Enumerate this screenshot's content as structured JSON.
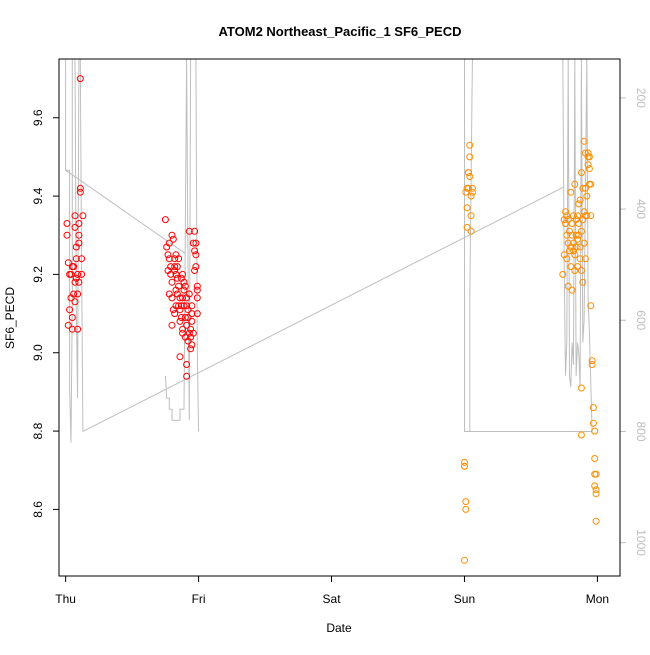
{
  "chart_data": {
    "type": "scatter",
    "title": "ATOM2 Northeast_Pacific_1 SF6_PECD",
    "xlabel": "Date",
    "ylabel": "SF6_PECD",
    "x_axis": {
      "unit": "day",
      "range": [
        -0.05,
        4.17
      ],
      "ticks": [
        {
          "v": 0,
          "label": "Thu"
        },
        {
          "v": 1,
          "label": "Fri"
        },
        {
          "v": 2,
          "label": "Sat"
        },
        {
          "v": 3,
          "label": "Sun"
        },
        {
          "v": 4,
          "label": "Mon"
        }
      ]
    },
    "y_axis": {
      "range": [
        8.43,
        9.75
      ],
      "ticks": [
        8.6,
        8.8,
        9.0,
        9.2,
        9.4,
        9.6
      ]
    },
    "y2_axis": {
      "label": "",
      "reversed": true,
      "range": [
        1060,
        130
      ],
      "ticks": [
        200,
        400,
        600,
        800,
        1000
      ],
      "color": "#bebebe"
    },
    "grid": false,
    "legend": "none",
    "colors": {
      "red": "#ff0000",
      "orange": "#ff8c00",
      "profile": "#bebebe",
      "axis": "#000000"
    },
    "series": [
      {
        "color": "#ff0000",
        "points": [
          [
            0.01,
            9.3
          ],
          [
            0.01,
            9.33
          ],
          [
            0.02,
            9.23
          ],
          [
            0.02,
            9.07
          ],
          [
            0.03,
            9.2
          ],
          [
            0.03,
            9.11
          ],
          [
            0.04,
            9.14
          ],
          [
            0.04,
            9.2
          ],
          [
            0.05,
            9.06
          ],
          [
            0.05,
            9.22
          ],
          [
            0.05,
            9.09
          ],
          [
            0.06,
            9.15
          ],
          [
            0.06,
            9.22
          ],
          [
            0.07,
            9.18
          ],
          [
            0.07,
            9.13
          ],
          [
            0.07,
            9.32
          ],
          [
            0.07,
            9.35
          ],
          [
            0.08,
            9.27
          ],
          [
            0.08,
            9.24
          ],
          [
            0.08,
            9.19
          ],
          [
            0.09,
            9.2
          ],
          [
            0.09,
            9.06
          ],
          [
            0.09,
            9.15
          ],
          [
            0.1,
            9.18
          ],
          [
            0.1,
            9.3
          ],
          [
            0.1,
            9.28
          ],
          [
            0.1,
            9.33
          ],
          [
            0.11,
            9.42
          ],
          [
            0.11,
            9.41
          ],
          [
            0.11,
            9.7
          ],
          [
            0.12,
            9.24
          ],
          [
            0.12,
            9.2
          ],
          [
            0.13,
            9.35
          ],
          [
            0.75,
            9.34
          ],
          [
            0.76,
            9.27
          ],
          [
            0.77,
            9.25
          ],
          [
            0.77,
            9.21
          ],
          [
            0.78,
            9.28
          ],
          [
            0.78,
            9.24
          ],
          [
            0.78,
            9.15
          ],
          [
            0.79,
            9.2
          ],
          [
            0.79,
            9.22
          ],
          [
            0.8,
            9.3
          ],
          [
            0.8,
            9.18
          ],
          [
            0.8,
            9.14
          ],
          [
            0.8,
            9.07
          ],
          [
            0.81,
            9.11
          ],
          [
            0.81,
            9.29
          ],
          [
            0.82,
            9.22
          ],
          [
            0.82,
            9.21
          ],
          [
            0.82,
            9.24
          ],
          [
            0.82,
            9.1
          ],
          [
            0.83,
            9.25
          ],
          [
            0.83,
            9.2
          ],
          [
            0.83,
            9.16
          ],
          [
            0.83,
            9.12
          ],
          [
            0.84,
            9.22
          ],
          [
            0.84,
            9.19
          ],
          [
            0.84,
            9.15
          ],
          [
            0.85,
            9.12
          ],
          [
            0.85,
            9.17
          ],
          [
            0.85,
            9.24
          ],
          [
            0.86,
            9.11
          ],
          [
            0.86,
            9.14
          ],
          [
            0.86,
            9.08
          ],
          [
            0.86,
            8.99
          ],
          [
            0.87,
            9.12
          ],
          [
            0.87,
            9.19
          ],
          [
            0.87,
            9.09
          ],
          [
            0.88,
            9.14
          ],
          [
            0.88,
            9.06
          ],
          [
            0.88,
            9.2
          ],
          [
            0.88,
            9.05
          ],
          [
            0.89,
            9.18
          ],
          [
            0.89,
            9.12
          ],
          [
            0.89,
            9.16
          ],
          [
            0.9,
            9.04
          ],
          [
            0.9,
            9.09
          ],
          [
            0.9,
            9.17
          ],
          [
            0.91,
            9.07
          ],
          [
            0.91,
            9.12
          ],
          [
            0.91,
            9.14
          ],
          [
            0.91,
            8.97
          ],
          [
            0.91,
            8.94
          ],
          [
            0.92,
            9.03
          ],
          [
            0.92,
            9.11
          ],
          [
            0.92,
            9.09
          ],
          [
            0.93,
            9.05
          ],
          [
            0.93,
            9.15
          ],
          [
            0.93,
            9.31
          ],
          [
            0.94,
            9.01
          ],
          [
            0.94,
            9.04
          ],
          [
            0.94,
            9.06
          ],
          [
            0.95,
            9.12
          ],
          [
            0.95,
            9.1
          ],
          [
            0.95,
            9.08
          ],
          [
            0.95,
            9.02
          ],
          [
            0.96,
            9.05
          ],
          [
            0.96,
            9.28
          ],
          [
            0.97,
            9.31
          ],
          [
            0.97,
            9.26
          ],
          [
            0.97,
            9.21
          ],
          [
            0.98,
            9.28
          ],
          [
            0.98,
            9.22
          ],
          [
            0.98,
            9.25
          ],
          [
            0.99,
            9.17
          ],
          [
            0.99,
            9.16
          ],
          [
            0.99,
            9.14
          ],
          [
            0.99,
            9.1
          ]
        ]
      },
      {
        "color": "#ff8c00",
        "points": [
          [
            3.0,
            8.72
          ],
          [
            3.0,
            8.71
          ],
          [
            3.0,
            8.71
          ],
          [
            3.01,
            8.62
          ],
          [
            3.01,
            8.6
          ],
          [
            3.0,
            8.47
          ],
          [
            3.01,
            9.41
          ],
          [
            3.02,
            9.42
          ],
          [
            3.02,
            9.37
          ],
          [
            3.02,
            9.32
          ],
          [
            3.03,
            9.46
          ],
          [
            3.03,
            9.46
          ],
          [
            3.03,
            9.42
          ],
          [
            3.04,
            9.5
          ],
          [
            3.04,
            9.53
          ],
          [
            3.04,
            9.45
          ],
          [
            3.05,
            9.4
          ],
          [
            3.05,
            9.35
          ],
          [
            3.05,
            9.31
          ],
          [
            3.06,
            9.42
          ],
          [
            3.06,
            9.41
          ],
          [
            3.74,
            9.2
          ],
          [
            3.75,
            9.34
          ],
          [
            3.75,
            9.25
          ],
          [
            3.76,
            9.36
          ],
          [
            3.76,
            9.33
          ],
          [
            3.77,
            9.3
          ],
          [
            3.77,
            9.35
          ],
          [
            3.77,
            9.24
          ],
          [
            3.78,
            9.28
          ],
          [
            3.78,
            9.34
          ],
          [
            3.78,
            9.17
          ],
          [
            3.79,
            9.31
          ],
          [
            3.79,
            9.26
          ],
          [
            3.8,
            9.27
          ],
          [
            3.8,
            9.41
          ],
          [
            3.8,
            9.22
          ],
          [
            3.81,
            9.33
          ],
          [
            3.81,
            9.3
          ],
          [
            3.81,
            9.16
          ],
          [
            3.82,
            9.35
          ],
          [
            3.82,
            9.28
          ],
          [
            3.82,
            9.26
          ],
          [
            3.83,
            9.43
          ],
          [
            3.83,
            9.25
          ],
          [
            3.83,
            9.21
          ],
          [
            3.84,
            9.34
          ],
          [
            3.84,
            9.3
          ],
          [
            3.84,
            9.27
          ],
          [
            3.85,
            9.35
          ],
          [
            3.85,
            9.29
          ],
          [
            3.85,
            9.22
          ],
          [
            3.86,
            9.38
          ],
          [
            3.86,
            9.33
          ],
          [
            3.86,
            9.3
          ],
          [
            3.87,
            9.24
          ],
          [
            3.87,
            9.27
          ],
          [
            3.87,
            9.39
          ],
          [
            3.88,
            9.21
          ],
          [
            3.88,
            9.31
          ],
          [
            3.88,
            9.46
          ],
          [
            3.88,
            8.79
          ],
          [
            3.88,
            8.91
          ],
          [
            3.89,
            9.34
          ],
          [
            3.89,
            9.42
          ],
          [
            3.89,
            9.18
          ],
          [
            3.9,
            9.36
          ],
          [
            3.9,
            9.54
          ],
          [
            3.9,
            9.28
          ],
          [
            3.91,
            9.51
          ],
          [
            3.91,
            9.42
          ],
          [
            3.91,
            9.35
          ],
          [
            3.91,
            9.24
          ],
          [
            3.92,
            9.4
          ],
          [
            3.92,
            9.35
          ],
          [
            3.93,
            9.48
          ],
          [
            3.93,
            9.51
          ],
          [
            3.93,
            9.5
          ],
          [
            3.94,
            9.5
          ],
          [
            3.94,
            9.43
          ],
          [
            3.94,
            9.47
          ],
          [
            3.95,
            9.43
          ],
          [
            3.95,
            9.35
          ],
          [
            3.95,
            9.12
          ],
          [
            3.96,
            8.98
          ],
          [
            3.96,
            8.97
          ],
          [
            3.97,
            8.82
          ],
          [
            3.97,
            8.86
          ],
          [
            3.98,
            8.8
          ],
          [
            3.98,
            8.69
          ],
          [
            3.98,
            8.73
          ],
          [
            3.99,
            8.69
          ],
          [
            3.99,
            8.64
          ],
          [
            3.99,
            8.57
          ],
          [
            3.98,
            8.66
          ],
          [
            3.99,
            8.65
          ]
        ]
      }
    ]
  }
}
